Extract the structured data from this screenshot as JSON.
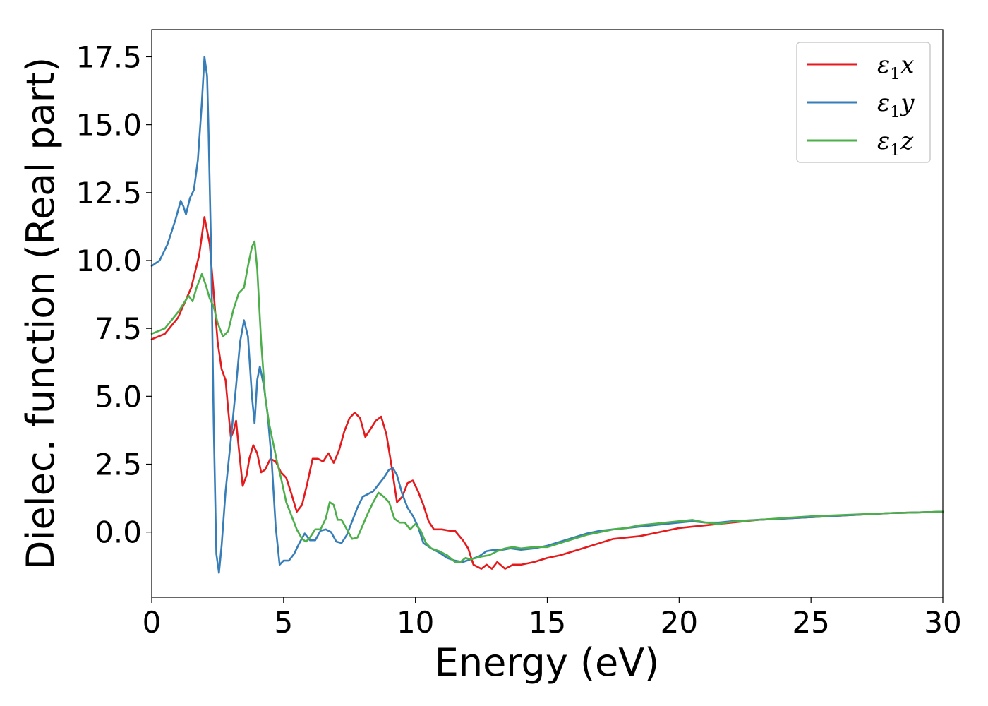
{
  "chart_data": {
    "type": "line",
    "title": "",
    "xlabel": "Energy (eV)",
    "ylabel": "Dielec. function (Real part)",
    "xlim": [
      0,
      30
    ],
    "ylim": [
      -2.4,
      18.5
    ],
    "xticks": [
      0,
      5,
      10,
      15,
      20,
      25,
      30
    ],
    "xtick_labels": [
      "0",
      "5",
      "10",
      "15",
      "20",
      "25",
      "30"
    ],
    "yticks": [
      0,
      2.5,
      5,
      7.5,
      10,
      12.5,
      15,
      17.5
    ],
    "ytick_labels": [
      "0.0",
      "2.5",
      "5.0",
      "7.5",
      "10.0",
      "12.5",
      "15.0",
      "17.5"
    ],
    "grid": false,
    "legend_position": "top-right",
    "series": [
      {
        "name": "ε1x",
        "legend": {
          "base": "ε",
          "sub": "1",
          "suffix": "x"
        },
        "color": "#e41a1c",
        "points": [
          [
            0,
            7.1
          ],
          [
            0.5,
            7.3
          ],
          [
            1.0,
            7.9
          ],
          [
            1.5,
            9.0
          ],
          [
            1.8,
            10.2
          ],
          [
            2.0,
            11.6
          ],
          [
            2.2,
            10.6
          ],
          [
            2.35,
            8.8
          ],
          [
            2.5,
            7.0
          ],
          [
            2.65,
            6.0
          ],
          [
            2.8,
            5.6
          ],
          [
            2.9,
            4.5
          ],
          [
            3.0,
            3.5
          ],
          [
            3.1,
            3.7
          ],
          [
            3.2,
            4.1
          ],
          [
            3.3,
            3.1
          ],
          [
            3.45,
            1.7
          ],
          [
            3.6,
            2.1
          ],
          [
            3.7,
            2.7
          ],
          [
            3.85,
            3.2
          ],
          [
            4.0,
            2.9
          ],
          [
            4.15,
            2.2
          ],
          [
            4.3,
            2.3
          ],
          [
            4.5,
            2.7
          ],
          [
            4.7,
            2.6
          ],
          [
            4.9,
            2.2
          ],
          [
            5.1,
            2.0
          ],
          [
            5.3,
            1.4
          ],
          [
            5.5,
            0.75
          ],
          [
            5.7,
            1.0
          ],
          [
            5.9,
            1.8
          ],
          [
            6.1,
            2.7
          ],
          [
            6.3,
            2.7
          ],
          [
            6.5,
            2.6
          ],
          [
            6.7,
            2.9
          ],
          [
            6.9,
            2.55
          ],
          [
            7.1,
            3.0
          ],
          [
            7.3,
            3.7
          ],
          [
            7.5,
            4.2
          ],
          [
            7.7,
            4.4
          ],
          [
            7.9,
            4.2
          ],
          [
            8.1,
            3.5
          ],
          [
            8.3,
            3.8
          ],
          [
            8.5,
            4.1
          ],
          [
            8.7,
            4.25
          ],
          [
            8.9,
            3.6
          ],
          [
            9.1,
            2.4
          ],
          [
            9.3,
            1.1
          ],
          [
            9.5,
            1.3
          ],
          [
            9.7,
            1.8
          ],
          [
            9.9,
            1.9
          ],
          [
            10.1,
            1.5
          ],
          [
            10.3,
            1.0
          ],
          [
            10.5,
            0.4
          ],
          [
            10.7,
            0.1
          ],
          [
            11.0,
            0.1
          ],
          [
            11.3,
            0.05
          ],
          [
            11.5,
            0.05
          ],
          [
            11.8,
            -0.3
          ],
          [
            12.0,
            -0.6
          ],
          [
            12.2,
            -1.2
          ],
          [
            12.5,
            -1.35
          ],
          [
            12.7,
            -1.2
          ],
          [
            12.9,
            -1.35
          ],
          [
            13.1,
            -1.1
          ],
          [
            13.4,
            -1.35
          ],
          [
            13.7,
            -1.2
          ],
          [
            14.0,
            -1.2
          ],
          [
            14.5,
            -1.1
          ],
          [
            15.0,
            -0.95
          ],
          [
            15.5,
            -0.85
          ],
          [
            16.0,
            -0.7
          ],
          [
            16.5,
            -0.55
          ],
          [
            17.0,
            -0.4
          ],
          [
            17.5,
            -0.25
          ],
          [
            18.0,
            -0.2
          ],
          [
            18.5,
            -0.15
          ],
          [
            19.0,
            -0.05
          ],
          [
            19.5,
            0.05
          ],
          [
            20.0,
            0.15
          ],
          [
            20.5,
            0.2
          ],
          [
            21.0,
            0.25
          ],
          [
            21.5,
            0.3
          ],
          [
            22.0,
            0.35
          ],
          [
            22.5,
            0.4
          ],
          [
            23.0,
            0.45
          ],
          [
            24.0,
            0.5
          ],
          [
            25.0,
            0.55
          ],
          [
            26.0,
            0.6
          ],
          [
            27.0,
            0.65
          ],
          [
            28.0,
            0.7
          ],
          [
            29.0,
            0.72
          ],
          [
            30.0,
            0.75
          ]
        ]
      },
      {
        "name": "ε1y",
        "legend": {
          "base": "ε",
          "sub": "1",
          "suffix": "y"
        },
        "color": "#377eb8",
        "points": [
          [
            0,
            9.8
          ],
          [
            0.3,
            10.0
          ],
          [
            0.6,
            10.6
          ],
          [
            0.9,
            11.5
          ],
          [
            1.1,
            12.2
          ],
          [
            1.2,
            12.0
          ],
          [
            1.3,
            11.7
          ],
          [
            1.45,
            12.3
          ],
          [
            1.6,
            12.6
          ],
          [
            1.75,
            13.7
          ],
          [
            1.9,
            15.8
          ],
          [
            2.0,
            17.5
          ],
          [
            2.1,
            16.8
          ],
          [
            2.15,
            15.0
          ],
          [
            2.25,
            10.5
          ],
          [
            2.35,
            4.0
          ],
          [
            2.45,
            -0.8
          ],
          [
            2.55,
            -1.5
          ],
          [
            2.65,
            -0.5
          ],
          [
            2.8,
            1.5
          ],
          [
            3.0,
            3.4
          ],
          [
            3.2,
            5.4
          ],
          [
            3.35,
            7.0
          ],
          [
            3.5,
            7.8
          ],
          [
            3.65,
            7.2
          ],
          [
            3.8,
            5.0
          ],
          [
            3.9,
            4.0
          ],
          [
            4.0,
            5.6
          ],
          [
            4.1,
            6.1
          ],
          [
            4.25,
            5.4
          ],
          [
            4.4,
            4.3
          ],
          [
            4.55,
            2.6
          ],
          [
            4.7,
            0.2
          ],
          [
            4.85,
            -1.2
          ],
          [
            5.0,
            -1.05
          ],
          [
            5.2,
            -1.05
          ],
          [
            5.4,
            -0.8
          ],
          [
            5.6,
            -0.4
          ],
          [
            5.8,
            -0.05
          ],
          [
            6.0,
            -0.3
          ],
          [
            6.2,
            -0.3
          ],
          [
            6.4,
            0.05
          ],
          [
            6.6,
            0.1
          ],
          [
            6.8,
            0.0
          ],
          [
            7.0,
            -0.35
          ],
          [
            7.2,
            -0.4
          ],
          [
            7.4,
            -0.1
          ],
          [
            7.6,
            0.4
          ],
          [
            7.8,
            0.9
          ],
          [
            8.0,
            1.3
          ],
          [
            8.2,
            1.4
          ],
          [
            8.4,
            1.5
          ],
          [
            8.6,
            1.75
          ],
          [
            8.8,
            2.0
          ],
          [
            9.0,
            2.3
          ],
          [
            9.15,
            2.35
          ],
          [
            9.3,
            2.1
          ],
          [
            9.5,
            1.4
          ],
          [
            9.7,
            0.9
          ],
          [
            9.9,
            0.6
          ],
          [
            10.1,
            0.2
          ],
          [
            10.3,
            -0.4
          ],
          [
            10.6,
            -0.6
          ],
          [
            10.9,
            -0.75
          ],
          [
            11.2,
            -0.95
          ],
          [
            11.5,
            -1.05
          ],
          [
            11.8,
            -1.1
          ],
          [
            12.1,
            -1.0
          ],
          [
            12.4,
            -0.9
          ],
          [
            12.7,
            -0.7
          ],
          [
            13.0,
            -0.65
          ],
          [
            13.3,
            -0.65
          ],
          [
            13.6,
            -0.6
          ],
          [
            14.0,
            -0.65
          ],
          [
            14.5,
            -0.6
          ],
          [
            15.0,
            -0.5
          ],
          [
            15.5,
            -0.35
          ],
          [
            16.0,
            -0.2
          ],
          [
            16.5,
            -0.05
          ],
          [
            17.0,
            0.05
          ],
          [
            17.5,
            0.1
          ],
          [
            18.0,
            0.15
          ],
          [
            18.5,
            0.2
          ],
          [
            19.0,
            0.25
          ],
          [
            19.5,
            0.3
          ],
          [
            20.0,
            0.35
          ],
          [
            20.5,
            0.4
          ],
          [
            21.0,
            0.35
          ],
          [
            21.5,
            0.35
          ],
          [
            22.0,
            0.4
          ],
          [
            23.0,
            0.45
          ],
          [
            24.0,
            0.5
          ],
          [
            25.0,
            0.55
          ],
          [
            26.0,
            0.6
          ],
          [
            27.0,
            0.65
          ],
          [
            28.0,
            0.7
          ],
          [
            29.0,
            0.72
          ],
          [
            30.0,
            0.75
          ]
        ]
      },
      {
        "name": "ε1z",
        "legend": {
          "base": "ε",
          "sub": "1",
          "suffix": "z"
        },
        "color": "#4daf4a",
        "points": [
          [
            0,
            7.3
          ],
          [
            0.5,
            7.5
          ],
          [
            1.0,
            8.1
          ],
          [
            1.4,
            8.7
          ],
          [
            1.55,
            8.5
          ],
          [
            1.7,
            9.0
          ],
          [
            1.9,
            9.5
          ],
          [
            2.05,
            9.1
          ],
          [
            2.2,
            8.6
          ],
          [
            2.35,
            8.3
          ],
          [
            2.5,
            7.7
          ],
          [
            2.7,
            7.2
          ],
          [
            2.9,
            7.4
          ],
          [
            3.1,
            8.2
          ],
          [
            3.3,
            8.8
          ],
          [
            3.5,
            9.0
          ],
          [
            3.65,
            9.8
          ],
          [
            3.8,
            10.5
          ],
          [
            3.9,
            10.7
          ],
          [
            4.0,
            9.7
          ],
          [
            4.15,
            7.0
          ],
          [
            4.3,
            5.0
          ],
          [
            4.45,
            4.0
          ],
          [
            4.6,
            3.3
          ],
          [
            4.75,
            2.6
          ],
          [
            4.9,
            2.0
          ],
          [
            5.1,
            1.1
          ],
          [
            5.3,
            0.6
          ],
          [
            5.5,
            0.1
          ],
          [
            5.7,
            -0.25
          ],
          [
            5.85,
            -0.35
          ],
          [
            6.0,
            -0.2
          ],
          [
            6.2,
            0.1
          ],
          [
            6.4,
            0.1
          ],
          [
            6.6,
            0.5
          ],
          [
            6.75,
            1.1
          ],
          [
            6.9,
            1.0
          ],
          [
            7.05,
            0.45
          ],
          [
            7.2,
            0.45
          ],
          [
            7.4,
            0.1
          ],
          [
            7.6,
            -0.25
          ],
          [
            7.8,
            -0.2
          ],
          [
            8.0,
            0.25
          ],
          [
            8.2,
            0.7
          ],
          [
            8.4,
            1.1
          ],
          [
            8.6,
            1.45
          ],
          [
            8.8,
            1.3
          ],
          [
            9.0,
            1.1
          ],
          [
            9.2,
            0.5
          ],
          [
            9.4,
            0.35
          ],
          [
            9.6,
            0.35
          ],
          [
            9.8,
            0.1
          ],
          [
            10.0,
            0.3
          ],
          [
            10.2,
            0.05
          ],
          [
            10.4,
            -0.4
          ],
          [
            10.6,
            -0.6
          ],
          [
            10.9,
            -0.7
          ],
          [
            11.2,
            -0.85
          ],
          [
            11.5,
            -1.1
          ],
          [
            11.7,
            -1.1
          ],
          [
            11.9,
            -0.95
          ],
          [
            12.1,
            -1.0
          ],
          [
            12.3,
            -0.95
          ],
          [
            12.5,
            -0.9
          ],
          [
            12.8,
            -0.85
          ],
          [
            13.1,
            -0.7
          ],
          [
            13.4,
            -0.6
          ],
          [
            13.7,
            -0.55
          ],
          [
            14.0,
            -0.6
          ],
          [
            14.5,
            -0.55
          ],
          [
            15.0,
            -0.55
          ],
          [
            15.5,
            -0.4
          ],
          [
            16.0,
            -0.25
          ],
          [
            16.5,
            -0.1
          ],
          [
            17.0,
            0.0
          ],
          [
            17.5,
            0.1
          ],
          [
            18.0,
            0.15
          ],
          [
            18.5,
            0.25
          ],
          [
            19.0,
            0.3
          ],
          [
            19.5,
            0.35
          ],
          [
            20.0,
            0.4
          ],
          [
            20.5,
            0.45
          ],
          [
            21.0,
            0.35
          ],
          [
            21.5,
            0.3
          ],
          [
            22.0,
            0.38
          ],
          [
            23.0,
            0.45
          ],
          [
            24.0,
            0.52
          ],
          [
            25.0,
            0.58
          ],
          [
            26.0,
            0.62
          ],
          [
            27.0,
            0.66
          ],
          [
            28.0,
            0.7
          ],
          [
            29.0,
            0.72
          ],
          [
            30.0,
            0.75
          ]
        ]
      }
    ]
  }
}
